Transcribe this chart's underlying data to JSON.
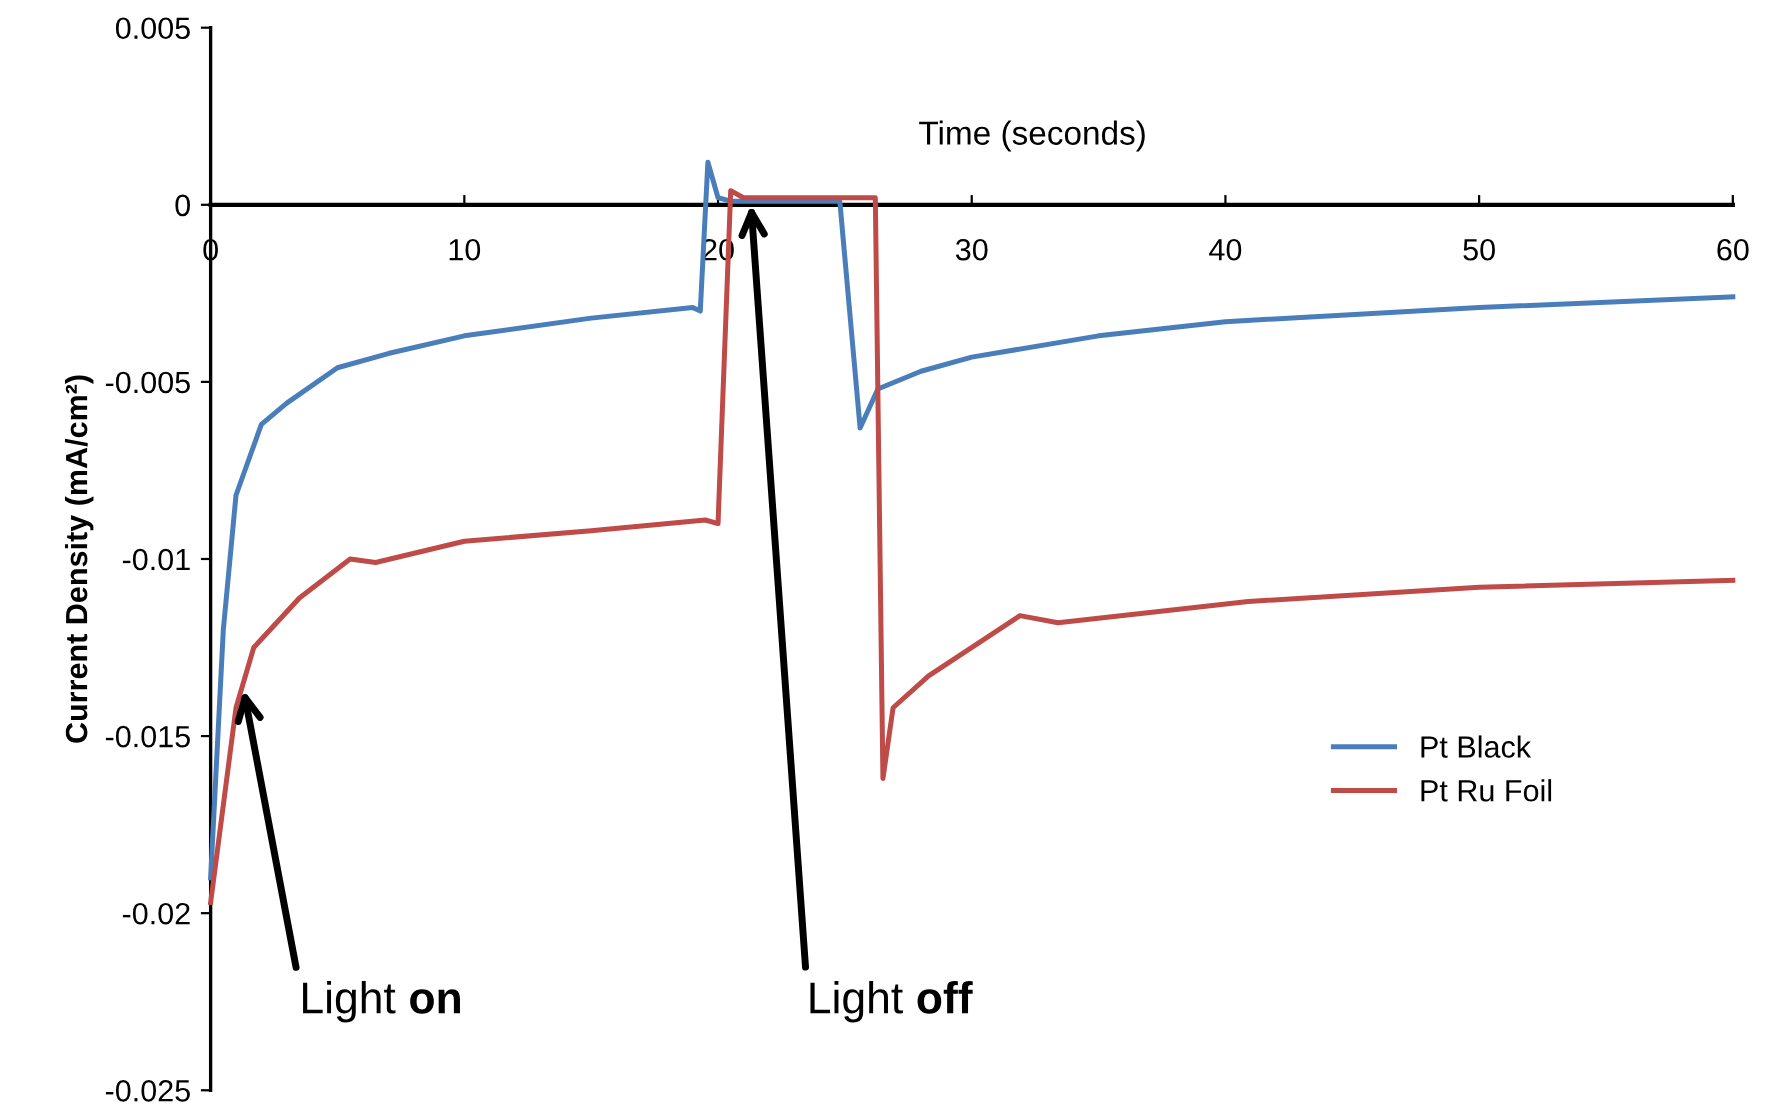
{
  "chart_data": {
    "type": "line",
    "xlabel": "Time (seconds)",
    "ylabel": "Current Density (mA/cm²)",
    "xlim": [
      0,
      60
    ],
    "xticks": [
      0,
      10,
      20,
      30,
      40,
      50,
      60
    ],
    "ylim": [
      -0.025,
      0.005
    ],
    "yticks": [
      -0.025,
      -0.02,
      -0.015,
      -0.01,
      -0.005,
      0,
      0.005
    ],
    "grid": false,
    "legend": "right",
    "marker": "none",
    "line_style": "solid",
    "series": [
      {
        "name": "Pt Black",
        "color": "#4a7ebb",
        "x": [
          0,
          0.5,
          1,
          2,
          3,
          5,
          7,
          10,
          15,
          19,
          19.3,
          19.6,
          20,
          20.5,
          22,
          24.8,
          25.6,
          26.3,
          28,
          30,
          35,
          40,
          50,
          60
        ],
        "values": [
          -0.019,
          -0.012,
          -0.0082,
          -0.0062,
          -0.0056,
          -0.0046,
          -0.0042,
          -0.0037,
          -0.0032,
          -0.0029,
          -0.003,
          0.0012,
          0.0002,
          0.0001,
          0.0001,
          0.0001,
          -0.0063,
          -0.0052,
          -0.0047,
          -0.0043,
          -0.0037,
          -0.0033,
          -0.0029,
          -0.0026
        ]
      },
      {
        "name": "Pt Ru Foil",
        "color": "#be4b48",
        "x": [
          0,
          1,
          1.7,
          3.5,
          5.5,
          6.5,
          10,
          15,
          19.5,
          20,
          20.5,
          21,
          23,
          26.2,
          26.5,
          26.9,
          28.3,
          31.9,
          33.4,
          40.9,
          50,
          60
        ],
        "values": [
          -0.0197,
          -0.0142,
          -0.0125,
          -0.0111,
          -0.01,
          -0.0101,
          -0.0095,
          -0.0092,
          -0.0089,
          -0.009,
          0.0004,
          0.0002,
          0.0002,
          0.0002,
          -0.0162,
          -0.0142,
          -0.0133,
          -0.0116,
          -0.0118,
          -0.0112,
          -0.0108,
          -0.0106
        ]
      }
    ],
    "annotations": [
      {
        "text": "Light on",
        "x": 1.3,
        "y": -0.0137
      },
      {
        "text": "Light off",
        "x": 21.3,
        "y": 0
      }
    ]
  }
}
